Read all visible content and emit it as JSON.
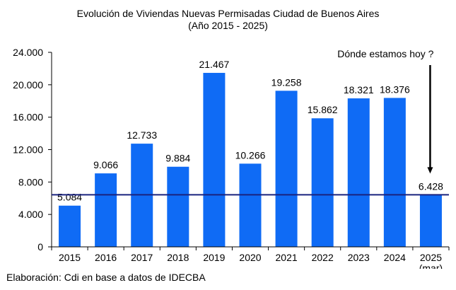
{
  "chart_data": {
    "type": "bar",
    "title": "Evolución de Viviendas Nuevas Permisadas Ciudad de Buenos Aires",
    "subtitle": "(Año 2015 - 2025)",
    "categories": [
      "2015",
      "2016",
      "2017",
      "2018",
      "2019",
      "2020",
      "2021",
      "2022",
      "2023",
      "2024",
      "2025"
    ],
    "category_sublabels": [
      "",
      "",
      "",
      "",
      "",
      "",
      "",
      "",
      "",
      "",
      "(mar)"
    ],
    "values": [
      5084,
      9066,
      12733,
      9884,
      21467,
      10266,
      19258,
      15862,
      18321,
      18376,
      6428
    ],
    "value_labels": [
      "5.084",
      "9.066",
      "12.733",
      "9.884",
      "21.467",
      "10.266",
      "19.258",
      "15.862",
      "18.321",
      "18.376",
      "6.428"
    ],
    "ylim": [
      0,
      24000
    ],
    "yticks": [
      0,
      4000,
      8000,
      12000,
      16000,
      20000,
      24000
    ],
    "ytick_labels": [
      "0",
      "4.000",
      "8.000",
      "12.000",
      "16.000",
      "20.000",
      "24.000"
    ],
    "reference_line": 6428,
    "annotation": "Dónde estamos hoy ?",
    "bar_color": "#0f6bf5",
    "line_color": "#1a237e",
    "grid": false,
    "legend": "none"
  },
  "footer": "Elaboración: Cdi en base a datos de IDECBA"
}
